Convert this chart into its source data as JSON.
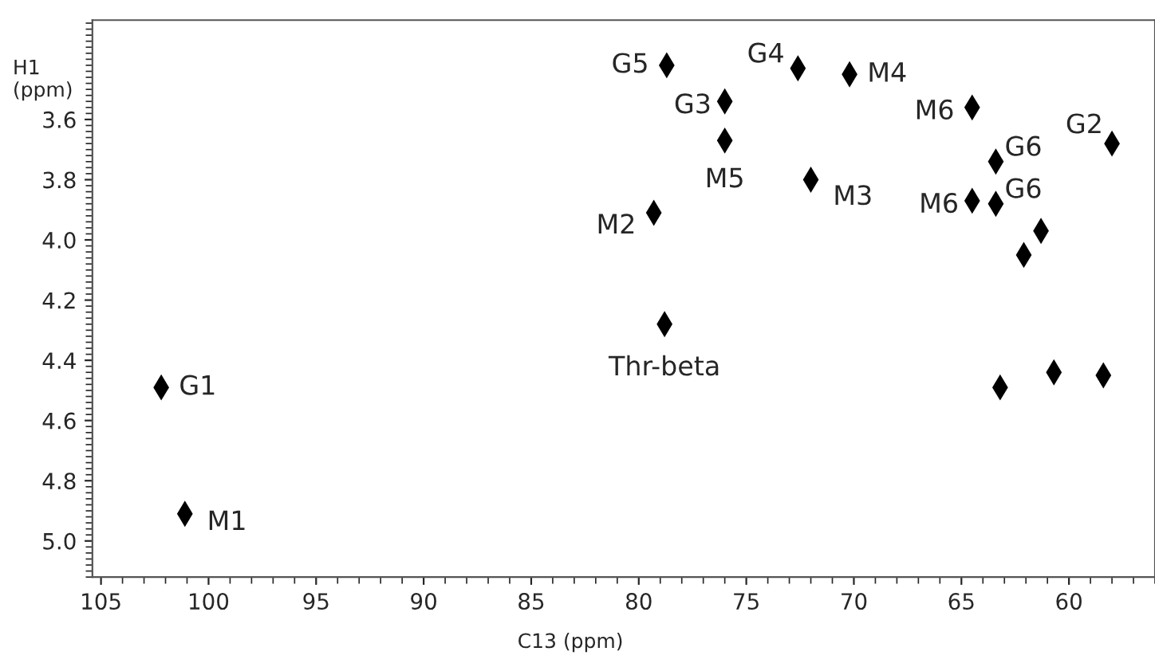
{
  "chart_data": {
    "type": "scatter",
    "xlabel": "C13 (ppm)",
    "ylabel": "H1\n(ppm)",
    "x": [
      78.7,
      72.6,
      70.2,
      76.0,
      76.0,
      64.5,
      58.0,
      63.4,
      63.4,
      64.5,
      72.0,
      79.3,
      61.3,
      62.1,
      78.8,
      63.2,
      60.7,
      58.4,
      102.2,
      101.1
    ],
    "series": [
      {
        "color": "#000000",
        "values": [
          3.42,
          3.43,
          3.45,
          3.54,
          3.67,
          3.56,
          3.68,
          3.74,
          3.88,
          3.87,
          3.8,
          3.91,
          3.97,
          4.05,
          4.28,
          4.49,
          4.44,
          4.45,
          4.49,
          4.91
        ]
      }
    ],
    "marker": "diamond",
    "xlim": [
      105.4,
      56.0
    ],
    "ylim": [
      5.12,
      3.27
    ],
    "xticks": [
      105,
      100,
      95,
      90,
      85,
      80,
      75,
      70,
      65,
      60
    ],
    "yticks": [
      3.6,
      3.8,
      {
        "value": 4.0,
        "label": "4.0"
      },
      4.2,
      4.4,
      4.6,
      4.8,
      {
        "value": 5.0,
        "label": "5.0"
      }
    ],
    "grid": false,
    "annotations": [
      {
        "text": "G5",
        "x": 78.7,
        "y": 3.42
      },
      {
        "text": "G4",
        "x": 72.6,
        "y": 3.43
      },
      {
        "text": "M4",
        "x": 70.2,
        "y": 3.45
      },
      {
        "text": "G3",
        "x": 76.0,
        "y": 3.54
      },
      {
        "text": "M5",
        "x": 76.0,
        "y": 3.67
      },
      {
        "text": "M6",
        "x": 64.5,
        "y": 3.56
      },
      {
        "text": "G2",
        "x": 58.0,
        "y": 3.68
      },
      {
        "text": "G6",
        "x": 63.4,
        "y": 3.74
      },
      {
        "text": "G6",
        "x": 63.4,
        "y": 3.88
      },
      {
        "text": "M6",
        "x": 64.5,
        "y": 3.87
      },
      {
        "text": "M3",
        "x": 72.0,
        "y": 3.8
      },
      {
        "text": "M2",
        "x": 79.3,
        "y": 3.91
      },
      {
        "text": "Thr-beta",
        "x": 78.8,
        "y": 4.28
      },
      {
        "text": "G1",
        "x": 102.2,
        "y": 4.49
      },
      {
        "text": "M1",
        "x": 101.1,
        "y": 4.91
      }
    ]
  }
}
